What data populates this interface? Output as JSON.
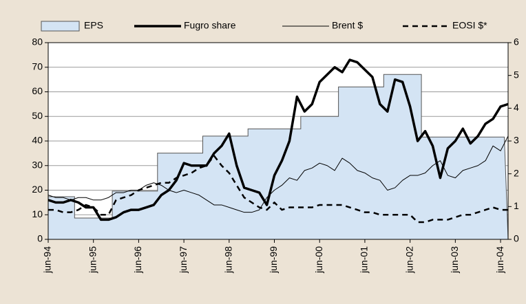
{
  "chart_data": {
    "type": "line",
    "categories": [
      "jun-94",
      null,
      null,
      null,
      null,
      null,
      "jun-95",
      null,
      null,
      null,
      null,
      null,
      "jun-96",
      null,
      null,
      null,
      null,
      null,
      "jun-97",
      null,
      null,
      null,
      null,
      null,
      "jun-98",
      null,
      null,
      null,
      null,
      null,
      "jun-99",
      null,
      null,
      null,
      null,
      null,
      "jun-00",
      null,
      null,
      null,
      null,
      null,
      "jun-01",
      null,
      null,
      null,
      null,
      null,
      "jun-02",
      null,
      null,
      null,
      null,
      null,
      "jun-03",
      null,
      null,
      null,
      null,
      null,
      "jun-04",
      null
    ],
    "ylim": [
      0,
      80
    ],
    "yticks": [
      0,
      10,
      20,
      30,
      40,
      50,
      60,
      70,
      80
    ],
    "y2lim": [
      0,
      6
    ],
    "y2ticks": [
      0,
      1,
      2,
      3,
      4,
      5,
      6
    ],
    "grid": true,
    "legend": "top",
    "series": [
      {
        "name": "EPS",
        "type": "area",
        "axis": "y2",
        "color": "#d4e4f4",
        "stroke": "#555555",
        "values": [
          1.3,
          1.3,
          1.3,
          1.3,
          0.65,
          0.65,
          0.65,
          0.65,
          0.65,
          1.47,
          1.47,
          1.47,
          1.47,
          1.47,
          1.47,
          2.63,
          2.63,
          2.63,
          2.63,
          2.63,
          2.63,
          3.15,
          3.15,
          3.15,
          3.15,
          3.15,
          3.15,
          3.37,
          3.37,
          3.37,
          3.37,
          3.37,
          3.37,
          3.37,
          3.75,
          3.75,
          3.75,
          3.75,
          3.75,
          4.65,
          4.65,
          4.65,
          4.65,
          4.65,
          4.65,
          5.03,
          5.03,
          5.03,
          5.03,
          5.03,
          3.12,
          3.12,
          3.12,
          3.12,
          3.12,
          3.12,
          3.12,
          3.12,
          3.12,
          3.12,
          3.12,
          3.12
        ]
      },
      {
        "name": "Fugro share",
        "type": "line",
        "color": "#000000",
        "line_width": 3.5,
        "values": [
          16,
          15,
          15,
          16,
          15,
          13,
          13,
          8,
          8,
          9,
          11,
          12,
          12,
          13,
          14,
          18,
          20,
          24,
          31,
          30,
          30,
          30,
          35,
          38,
          43,
          30,
          21,
          20,
          19,
          14,
          26,
          32,
          40,
          58,
          52,
          55,
          64,
          67,
          70,
          68,
          73,
          72,
          69,
          66,
          55,
          52,
          65,
          64,
          54,
          40,
          44,
          38,
          25,
          37,
          40,
          45,
          39,
          42,
          47,
          49,
          54,
          55
        ]
      },
      {
        "name": "Brent $",
        "type": "line",
        "color": "#000000",
        "line_width": 1,
        "values": [
          18,
          17,
          17,
          16,
          17,
          17,
          16,
          16,
          17,
          19,
          19,
          20,
          20,
          22,
          23,
          22,
          20,
          19,
          20,
          19,
          18,
          16,
          14,
          14,
          13,
          12,
          11,
          11,
          12,
          17,
          20,
          22,
          25,
          24,
          28,
          29,
          31,
          30,
          28,
          33,
          31,
          28,
          27,
          25,
          24,
          20,
          21,
          24,
          26,
          26,
          27,
          30,
          32,
          26,
          25,
          28,
          29,
          30,
          32,
          38,
          36,
          42
        ]
      },
      {
        "name": "EOSI $*",
        "type": "line",
        "color": "#000000",
        "line_width": 2.5,
        "dashed": true,
        "values": [
          12,
          12,
          11,
          11,
          12,
          14,
          13,
          10,
          10,
          16,
          17,
          18,
          20,
          21,
          22,
          23,
          23,
          25,
          26,
          27,
          29,
          30,
          34,
          30,
          27,
          22,
          17,
          15,
          13,
          12,
          15,
          12,
          13,
          13,
          13,
          13,
          14,
          14,
          14,
          14,
          13,
          12,
          11,
          11,
          10,
          10,
          10,
          10,
          10,
          7,
          7,
          8,
          8,
          8,
          9,
          10,
          10,
          11,
          12,
          13,
          12,
          12
        ]
      }
    ]
  }
}
